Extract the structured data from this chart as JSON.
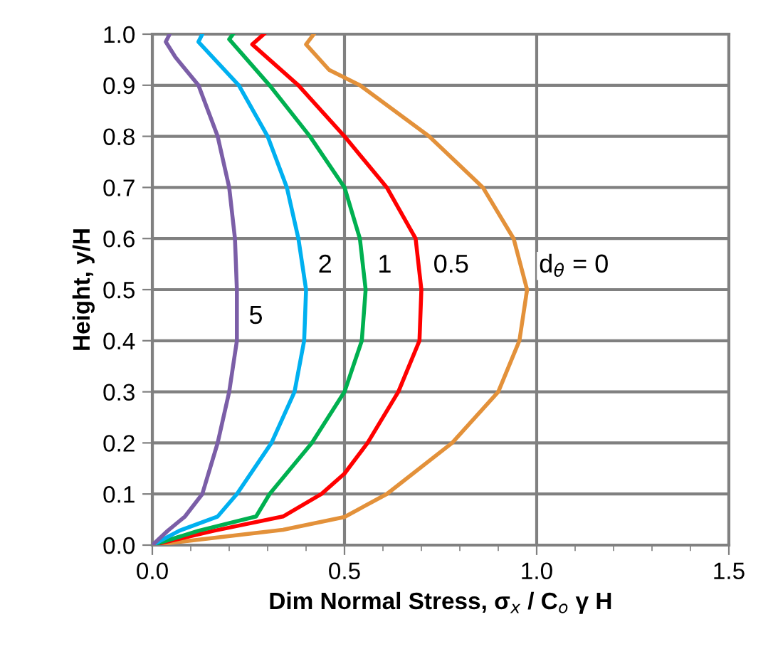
{
  "chart_data": {
    "type": "line",
    "xlabel": "Dim Normal Stress, σ$_{x}$ / C$_{o}$ γ H",
    "ylabel": "Height, y/H",
    "xlim": [
      0,
      1.5
    ],
    "ylim": [
      0,
      1.0
    ],
    "xticks": [
      {
        "value": 0,
        "label": "0.0"
      },
      {
        "value": 0.1,
        "label": null
      },
      {
        "value": 0.2,
        "label": null
      },
      {
        "value": 0.3,
        "label": null
      },
      {
        "value": 0.4,
        "label": null
      },
      0.5,
      {
        "value": 0.6,
        "label": null
      },
      {
        "value": 0.7,
        "label": null
      },
      {
        "value": 0.8,
        "label": null
      },
      {
        "value": 0.9,
        "label": null
      },
      {
        "value": 1.0,
        "label": "1.0"
      },
      {
        "value": 1.1,
        "label": null
      },
      {
        "value": 1.2,
        "label": null
      },
      {
        "value": 1.3,
        "label": null
      },
      {
        "value": 1.4,
        "label": null
      },
      1.5
    ],
    "yticks": [
      {
        "value": 0,
        "label": "0.0"
      },
      0.1,
      0.2,
      0.3,
      0.4,
      0.5,
      0.6,
      0.7,
      0.8,
      0.9,
      {
        "value": 1.0,
        "label": "1.0"
      }
    ],
    "grid": true,
    "legend": false,
    "marker": "none",
    "line_style": "solid",
    "series": [
      {
        "name": "d$_{θ}$ = 0",
        "color": "#e3913a",
        "x": [
          0,
          0.34,
          0.5,
          0.61,
          0.78,
          0.9,
          0.955,
          0.975,
          0.94,
          0.86,
          0.72,
          0.54,
          0.46,
          0.4,
          0.42
        ],
        "values": [
          0,
          0.03,
          0.055,
          0.1,
          0.2,
          0.3,
          0.4,
          0.5,
          0.6,
          0.7,
          0.8,
          0.9,
          0.93,
          0.98,
          1.0
        ]
      },
      {
        "name": "0.5",
        "color": "#ff0000",
        "x": [
          0,
          0.16,
          0.34,
          0.44,
          0.5,
          0.56,
          0.64,
          0.695,
          0.7,
          0.685,
          0.61,
          0.5,
          0.38,
          0.26,
          0.29
        ],
        "values": [
          0,
          0.028,
          0.056,
          0.1,
          0.14,
          0.2,
          0.3,
          0.4,
          0.5,
          0.6,
          0.7,
          0.8,
          0.9,
          0.98,
          1.0
        ]
      },
      {
        "name": "1",
        "color": "#00b050",
        "x": [
          0,
          0.12,
          0.27,
          0.305,
          0.415,
          0.5,
          0.545,
          0.555,
          0.54,
          0.5,
          0.41,
          0.305,
          0.2,
          0.21
        ],
        "values": [
          0,
          0.028,
          0.056,
          0.1,
          0.2,
          0.3,
          0.4,
          0.5,
          0.6,
          0.7,
          0.8,
          0.9,
          0.99,
          1.0
        ]
      },
      {
        "name": "2",
        "color": "#00b0f0",
        "x": [
          0,
          0.07,
          0.17,
          0.22,
          0.31,
          0.37,
          0.395,
          0.4,
          0.38,
          0.35,
          0.3,
          0.225,
          0.12,
          0.13
        ],
        "values": [
          0,
          0.028,
          0.056,
          0.1,
          0.2,
          0.3,
          0.4,
          0.5,
          0.6,
          0.7,
          0.8,
          0.9,
          0.985,
          1.0
        ]
      },
      {
        "name": "5",
        "color": "#7b5ea7",
        "x": [
          0,
          0.04,
          0.085,
          0.13,
          0.17,
          0.2,
          0.22,
          0.22,
          0.215,
          0.2,
          0.17,
          0.12,
          0.06,
          0.035,
          0.045
        ],
        "values": [
          0,
          0.028,
          0.056,
          0.1,
          0.2,
          0.3,
          0.4,
          0.5,
          0.6,
          0.7,
          0.8,
          0.9,
          0.955,
          0.985,
          1.0
        ]
      }
    ]
  }
}
